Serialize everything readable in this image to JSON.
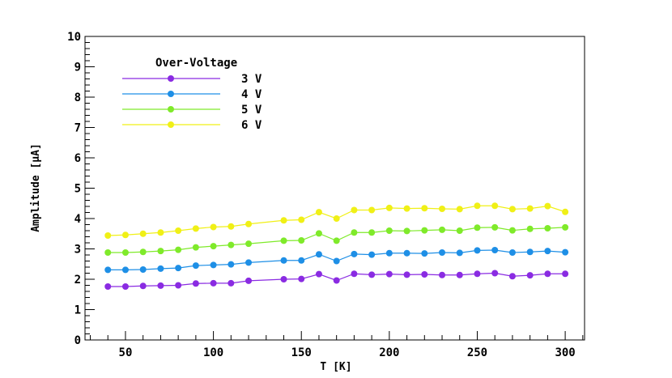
{
  "chart_data": {
    "type": "line",
    "xlabel": "T [K]",
    "ylabel": "Amplitude [μA]",
    "xlim": [
      27,
      311
    ],
    "ylim": [
      0,
      10
    ],
    "x_ticks": [
      50,
      100,
      150,
      200,
      250,
      300
    ],
    "y_ticks": [
      0,
      1,
      2,
      3,
      4,
      5,
      6,
      7,
      8,
      9,
      10
    ],
    "legend": {
      "title": "Over-Voltage",
      "placement": "top-left"
    },
    "grid": false,
    "x": [
      40,
      50,
      60,
      70,
      80,
      90,
      100,
      110,
      120,
      140,
      150,
      160,
      170,
      180,
      190,
      200,
      210,
      220,
      230,
      240,
      250,
      260,
      270,
      280,
      290,
      300
    ],
    "series": [
      {
        "name": "3 V",
        "color": "#8a2be2",
        "values": [
          1.76,
          1.76,
          1.78,
          1.79,
          1.8,
          1.86,
          1.87,
          1.87,
          1.95,
          2.0,
          2.01,
          2.17,
          1.96,
          2.18,
          2.15,
          2.17,
          2.15,
          2.16,
          2.14,
          2.14,
          2.18,
          2.2,
          2.1,
          2.13,
          2.18,
          2.18
        ]
      },
      {
        "name": "4 V",
        "color": "#1e8fe6",
        "values": [
          2.31,
          2.31,
          2.32,
          2.35,
          2.37,
          2.45,
          2.47,
          2.49,
          2.55,
          2.62,
          2.62,
          2.82,
          2.6,
          2.83,
          2.81,
          2.86,
          2.86,
          2.85,
          2.88,
          2.87,
          2.95,
          2.96,
          2.88,
          2.9,
          2.93,
          2.89
        ]
      },
      {
        "name": "5 V",
        "color": "#7fea2a",
        "values": [
          2.88,
          2.88,
          2.9,
          2.93,
          2.97,
          3.05,
          3.09,
          3.13,
          3.17,
          3.27,
          3.28,
          3.51,
          3.27,
          3.54,
          3.54,
          3.6,
          3.59,
          3.61,
          3.63,
          3.6,
          3.7,
          3.71,
          3.61,
          3.66,
          3.68,
          3.71
        ]
      },
      {
        "name": "6 V",
        "color": "#f0f016",
        "values": [
          3.44,
          3.46,
          3.5,
          3.54,
          3.6,
          3.67,
          3.72,
          3.74,
          3.82,
          3.94,
          3.96,
          4.21,
          4.0,
          4.28,
          4.28,
          4.35,
          4.33,
          4.34,
          4.32,
          4.31,
          4.42,
          4.42,
          4.31,
          4.33,
          4.41,
          4.22
        ]
      }
    ]
  }
}
